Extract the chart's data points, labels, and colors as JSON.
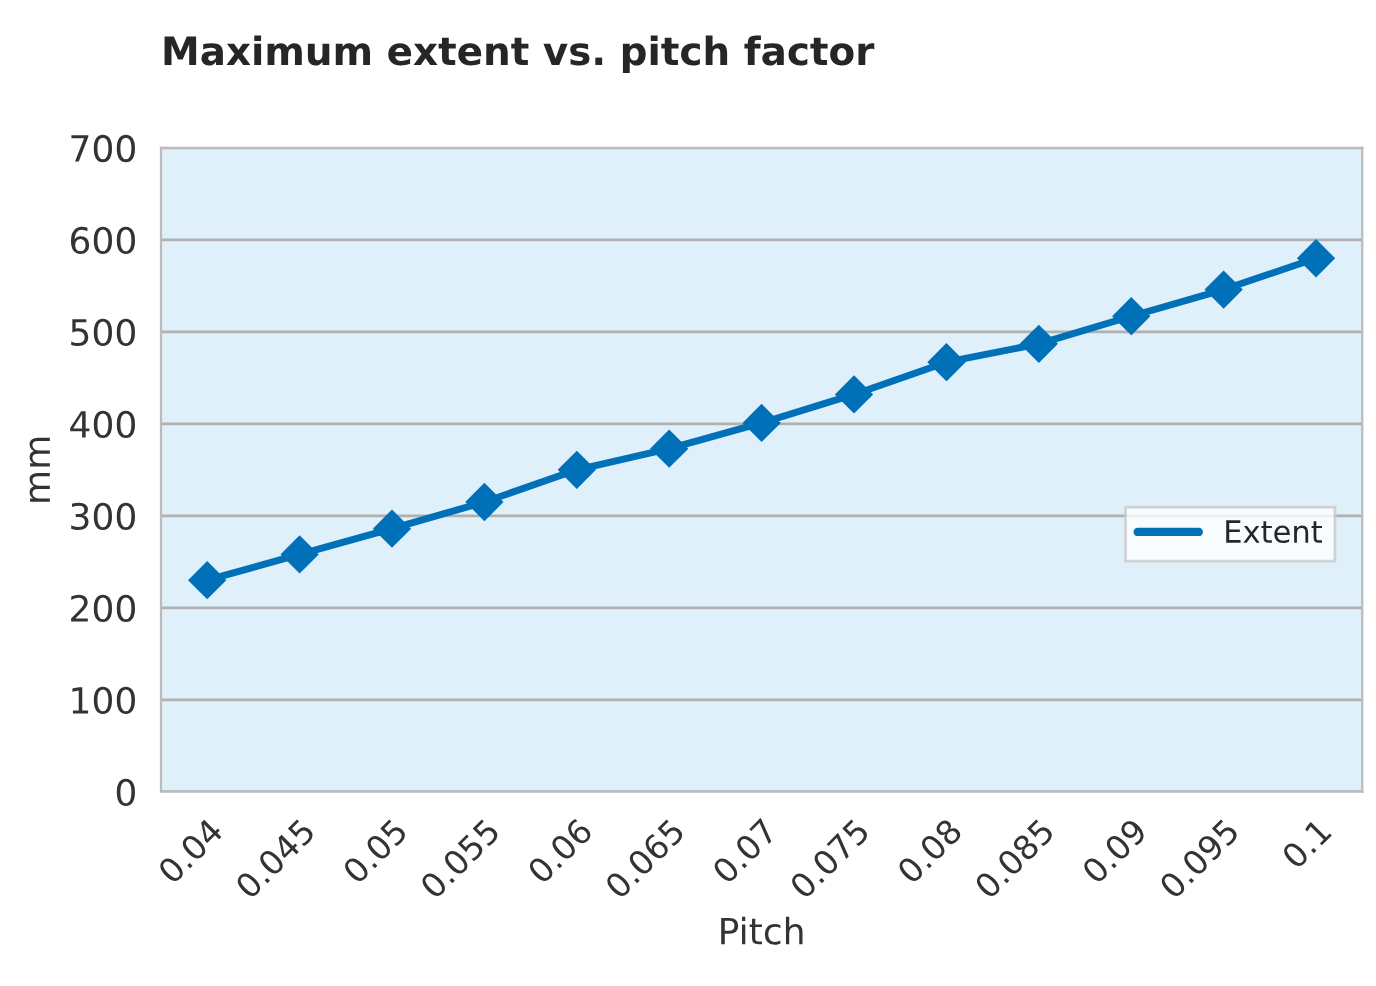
{
  "chart_data": {
    "type": "line",
    "title": "Maximum extent vs. pitch factor",
    "xlabel": "Pitch",
    "ylabel": "mm",
    "categories": [
      "0.04",
      "0.045",
      "0.05",
      "0.055",
      "0.06",
      "0.065",
      "0.07",
      "0.075",
      "0.08",
      "0.085",
      "0.09",
      "0.095",
      "0.1"
    ],
    "series": [
      {
        "name": "Extent",
        "color": "#0070b8",
        "values": [
          230,
          258,
          286,
          315,
          350,
          373,
          401,
          432,
          467,
          487,
          517,
          546,
          580
        ]
      }
    ],
    "ylim": [
      0,
      700
    ],
    "yticks": [
      0,
      100,
      200,
      300,
      400,
      500,
      600,
      700
    ],
    "grid": "y",
    "legend": "right",
    "marker": "diamond",
    "line_style": "solid"
  }
}
